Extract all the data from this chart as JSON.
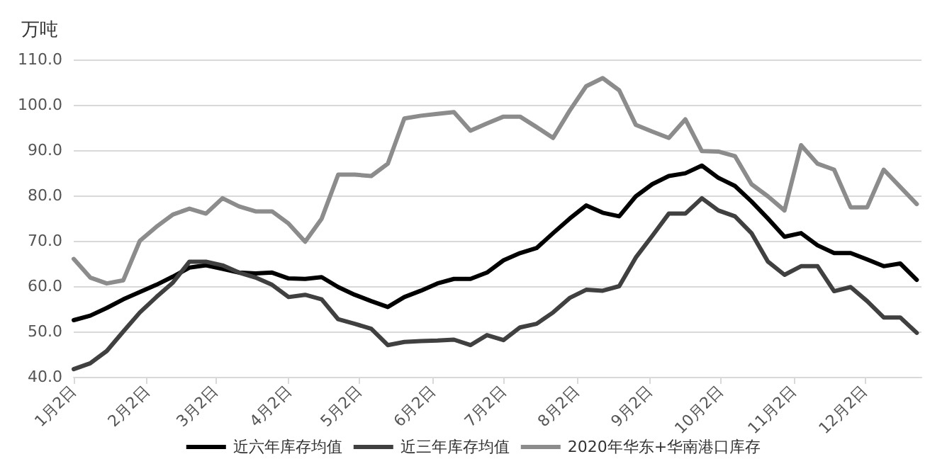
{
  "chart_data": {
    "type": "line",
    "ylabel": "万吨",
    "x": [
      "--01-02",
      "--01-09",
      "--01-16",
      "--01-23",
      "--01-30",
      "--02-06",
      "--02-13",
      "--02-20",
      "--02-27",
      "--03-05",
      "--03-12",
      "--03-19",
      "--03-26",
      "--04-02",
      "--04-09",
      "--04-16",
      "--04-23",
      "--04-30",
      "--05-07",
      "--05-14",
      "--05-21",
      "--05-28",
      "--06-04",
      "--06-11",
      "--06-18",
      "--06-25",
      "--07-02",
      "--07-09",
      "--07-16",
      "--07-23",
      "--07-30",
      "--08-06",
      "--08-13",
      "--08-20",
      "--08-27",
      "--09-03",
      "--09-10",
      "--09-17",
      "--09-24",
      "--10-01",
      "--10-08",
      "--10-15",
      "--10-22",
      "--10-29",
      "--11-05",
      "--11-12",
      "--11-19",
      "--11-26",
      "--12-03",
      "--12-10",
      "--12-17",
      "--12-24"
    ],
    "series": [
      {
        "name": "近六年库存均值",
        "color": "#000000",
        "values": [
          52.5,
          53.5,
          55.2,
          57.1,
          58.7,
          60.3,
          62.1,
          64.1,
          64.6,
          63.8,
          63.0,
          62.8,
          63.0,
          61.7,
          61.6,
          62.0,
          59.8,
          58.1,
          56.7,
          55.4,
          57.6,
          59.0,
          60.6,
          61.6,
          61.6,
          63.0,
          65.7,
          67.3,
          68.4,
          71.7,
          74.9,
          77.8,
          76.2,
          75.4,
          79.8,
          82.5,
          84.3,
          84.9,
          86.6,
          83.9,
          82.1,
          78.7,
          74.9,
          70.9,
          71.7,
          69.0,
          67.3,
          67.3,
          65.9,
          64.4,
          65.0,
          61.4
        ]
      },
      {
        "name": "近三年库存均值",
        "color": "#404040",
        "values": [
          41.7,
          43.0,
          45.7,
          50.0,
          54.2,
          57.6,
          60.8,
          65.4,
          65.4,
          64.6,
          63.0,
          61.9,
          60.3,
          57.6,
          58.1,
          57.1,
          52.7,
          51.7,
          50.6,
          47.0,
          47.7,
          47.9,
          48.0,
          48.2,
          47.0,
          49.2,
          48.1,
          50.9,
          51.7,
          54.2,
          57.4,
          59.2,
          59.0,
          60.0,
          66.3,
          71.1,
          76.0,
          76.0,
          79.4,
          76.7,
          75.4,
          71.7,
          65.4,
          62.5,
          64.4,
          64.4,
          58.9,
          59.8,
          56.7,
          53.1,
          53.1,
          49.7
        ]
      },
      {
        "name": "2020年华东+华南港口库存",
        "color": "#8c8c8c",
        "values": [
          66.0,
          61.9,
          60.6,
          61.3,
          70.0,
          73.1,
          75.8,
          77.1,
          76.0,
          79.4,
          77.6,
          76.5,
          76.5,
          73.8,
          69.8,
          74.9,
          84.6,
          84.6,
          84.3,
          87.0,
          97.0,
          97.6,
          98.0,
          98.4,
          94.3,
          95.9,
          97.4,
          97.4,
          95.1,
          92.7,
          98.7,
          104.1,
          105.9,
          103.2,
          95.6,
          94.1,
          92.7,
          96.8,
          89.8,
          89.7,
          88.7,
          82.5,
          79.8,
          76.7,
          91.1,
          87.0,
          85.7,
          77.4,
          77.4,
          85.7,
          81.9,
          78.1
        ]
      }
    ],
    "xlim": [
      "--01-02",
      "--12-26"
    ],
    "xticks": [
      {
        "value": "--01-02",
        "label": "1月2日"
      },
      {
        "value": "--02-02",
        "label": "2月2日"
      },
      {
        "value": "--03-02",
        "label": "3月2日"
      },
      {
        "value": "--04-02",
        "label": "4月2日"
      },
      {
        "value": "--05-02",
        "label": "5月2日"
      },
      {
        "value": "--06-02",
        "label": "6月2日"
      },
      {
        "value": "--07-02",
        "label": "7月2日"
      },
      {
        "value": "--08-02",
        "label": "8月2日"
      },
      {
        "value": "--09-02",
        "label": "9月2日"
      },
      {
        "value": "--10-02",
        "label": "10月2日"
      },
      {
        "value": "--11-02",
        "label": "11月2日"
      },
      {
        "value": "--12-02",
        "label": "12月2日"
      }
    ],
    "ylim": [
      40,
      110
    ],
    "yticks": [
      {
        "value": 40,
        "label": "40.0"
      },
      {
        "value": 50,
        "label": "50.0"
      },
      {
        "value": 60,
        "label": "60.0"
      },
      {
        "value": 70,
        "label": "70.0"
      },
      {
        "value": 80,
        "label": "80.0"
      },
      {
        "value": 90,
        "label": "90.0"
      },
      {
        "value": 100,
        "label": "100.0"
      },
      {
        "value": 110,
        "label": "110.0"
      }
    ],
    "grid": "y",
    "legend": "bottom",
    "marker": "none",
    "line_style": "solid"
  }
}
